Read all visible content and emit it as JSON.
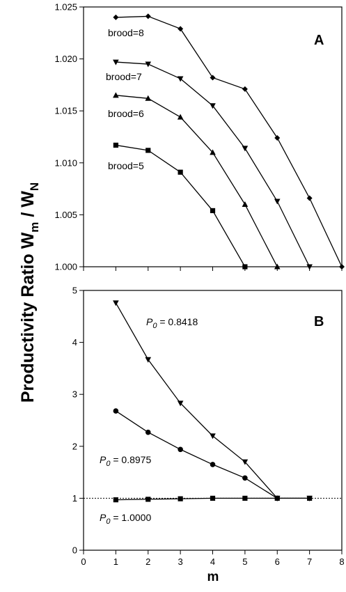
{
  "y_axis_label": {
    "main": "Productivity Ratio W",
    "sub1": "m",
    "mid": " / W",
    "sub2": "N"
  },
  "x_axis_label": "m",
  "chart_data": [
    {
      "type": "line",
      "panel": "A",
      "xlim": [
        0,
        8
      ],
      "ylim": [
        1.0,
        1.025
      ],
      "x_ticks": [],
      "y_ticks": [
        "1.000",
        "1.005",
        "1.010",
        "1.015",
        "1.020",
        "1.025"
      ],
      "series": [
        {
          "name": "brood=8",
          "marker": "diamond",
          "x": [
            1,
            2,
            3,
            4,
            5,
            6,
            7,
            8
          ],
          "y": [
            1.024,
            1.0241,
            1.0229,
            1.0182,
            1.0171,
            1.0124,
            1.0066,
            1.0
          ]
        },
        {
          "name": "brood=7",
          "marker": "triangle-down",
          "x": [
            1,
            2,
            3,
            4,
            5,
            6,
            7
          ],
          "y": [
            1.0197,
            1.0195,
            1.0181,
            1.0155,
            1.0114,
            1.0063,
            1.0
          ]
        },
        {
          "name": "brood=6",
          "marker": "triangle-up",
          "x": [
            1,
            2,
            3,
            4,
            5,
            6
          ],
          "y": [
            1.0165,
            1.0162,
            1.0144,
            1.011,
            1.006,
            1.0
          ]
        },
        {
          "name": "brood=5",
          "marker": "square",
          "x": [
            1,
            2,
            3,
            4,
            5
          ],
          "y": [
            1.0117,
            1.0112,
            1.0091,
            1.0054,
            1.0
          ]
        }
      ]
    },
    {
      "type": "line",
      "panel": "B",
      "xlim": [
        0,
        8
      ],
      "ylim": [
        0,
        5
      ],
      "x_ticks": [
        "0",
        "1",
        "2",
        "3",
        "4",
        "5",
        "6",
        "7",
        "8"
      ],
      "y_ticks": [
        "0",
        "1",
        "2",
        "3",
        "4",
        "5"
      ],
      "reference_line": {
        "y": 1,
        "style": "dotted"
      },
      "series": [
        {
          "name": "P0 = 0.8418",
          "label_prefix": "P",
          "label_sub": "0",
          "label_rest": " = 0.8418",
          "marker": "triangle-down",
          "x": [
            1,
            2,
            3,
            4,
            5,
            6,
            7
          ],
          "y": [
            4.76,
            3.67,
            2.83,
            2.2,
            1.7,
            1.0,
            1.0
          ]
        },
        {
          "name": "P0 = 0.8975",
          "label_prefix": "P",
          "label_sub": "0",
          "label_rest": " = 0.8975",
          "marker": "circle",
          "x": [
            1,
            2,
            3,
            4,
            5,
            6
          ],
          "y": [
            2.68,
            2.27,
            1.94,
            1.65,
            1.39,
            1.0
          ]
        },
        {
          "name": "P0 = 1.0000",
          "label_prefix": "P",
          "label_sub": "0",
          "label_rest": " = 1.0000",
          "marker": "square",
          "x": [
            1,
            2,
            3,
            4,
            5,
            6,
            7
          ],
          "y": [
            0.97,
            0.98,
            0.99,
            1.0,
            1.0,
            1.0,
            1.0
          ]
        }
      ]
    }
  ]
}
